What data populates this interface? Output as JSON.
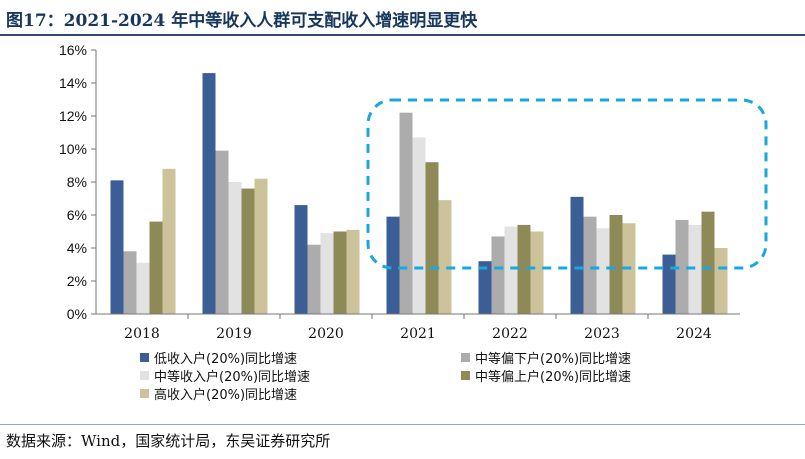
{
  "title": "图17：2021-2024 年中等收入人群可支配收入增速明显更快",
  "source": "数据来源：Wind，国家统计局，东吴证券研究所",
  "chart_data": {
    "type": "bar",
    "categories": [
      "2018",
      "2019",
      "2020",
      "2021",
      "2022",
      "2023",
      "2024"
    ],
    "ylim": [
      0,
      16
    ],
    "yticks": [
      "0%",
      "2%",
      "4%",
      "6%",
      "8%",
      "10%",
      "12%",
      "14%",
      "16%"
    ],
    "series": [
      {
        "name": "低收入户(20%)同比增速",
        "color": "#3c5e96",
        "values": [
          8.1,
          14.6,
          6.6,
          5.9,
          3.2,
          7.1,
          3.6
        ]
      },
      {
        "name": "中等偏下户(20%)同比增速",
        "color": "#acacac",
        "values": [
          3.8,
          9.9,
          4.2,
          12.2,
          4.7,
          5.9,
          5.7
        ]
      },
      {
        "name": "中等收入户(20%)同比增速",
        "color": "#e2e2e2",
        "values": [
          3.1,
          8.0,
          4.9,
          10.7,
          5.3,
          5.2,
          5.4
        ]
      },
      {
        "name": "中等偏上户(20%)同比增速",
        "color": "#8e8a58",
        "values": [
          5.6,
          7.6,
          5.0,
          9.2,
          5.4,
          6.0,
          6.2
        ]
      },
      {
        "name": "高收入户(20%)同比增速",
        "color": "#cdc39b",
        "values": [
          8.8,
          8.2,
          5.1,
          6.9,
          5.0,
          5.5,
          4.0
        ]
      }
    ],
    "legend_position": "bottom",
    "highlight_color": "#1aa7e0"
  }
}
